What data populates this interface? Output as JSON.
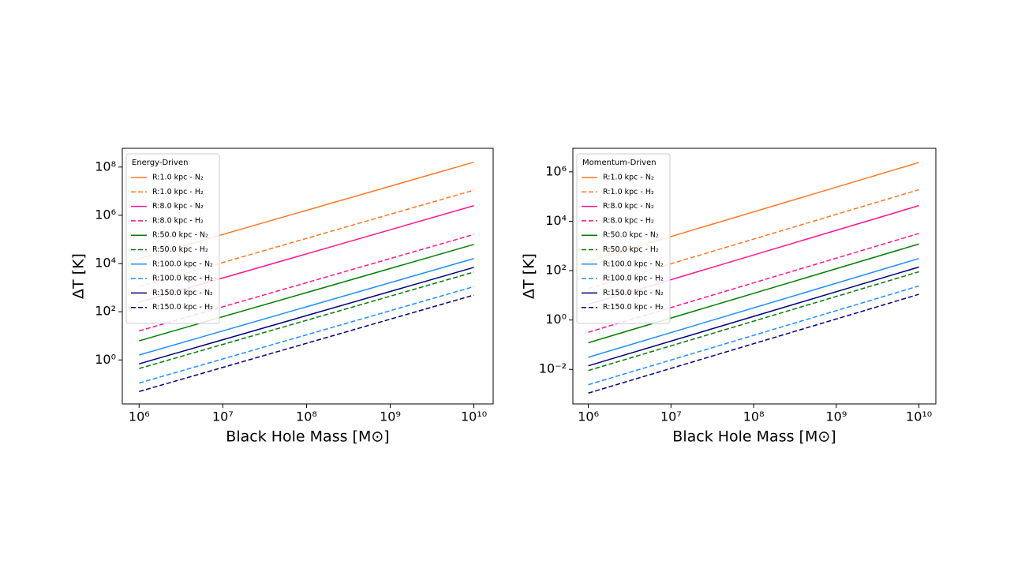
{
  "chart_data": [
    {
      "type": "line",
      "legend_title": "Energy-Driven",
      "xlabel": "Black Hole Mass [M⊙]",
      "ylabel": "ΔT [K]",
      "log_x": true,
      "log_y": true,
      "legend": "upper left",
      "x": [
        1000000,
        10000000000
      ],
      "xlim": [
        630000,
        17000000000
      ],
      "ylim": [
        0.015,
        600000000
      ],
      "xticks": [
        {
          "value": 1000000,
          "label": "10⁶"
        },
        {
          "value": 10000000,
          "label": "10⁷"
        },
        {
          "value": 100000000,
          "label": "10⁸"
        },
        {
          "value": 1000000000,
          "label": "10⁹"
        },
        {
          "value": 10000000000,
          "label": "10¹⁰"
        }
      ],
      "yticks": [
        {
          "value": 1,
          "label": "10⁰"
        },
        {
          "value": 100,
          "label": "10²"
        },
        {
          "value": 10000,
          "label": "10⁴"
        },
        {
          "value": 1000000,
          "label": "10⁶"
        },
        {
          "value": 100000000,
          "label": "10⁸"
        }
      ],
      "series": [
        {
          "name": "R:1.0 kpc - N₂",
          "color": "#ff7722",
          "linestyle": "solid",
          "values": [
            16000,
            160000000
          ]
        },
        {
          "name": "R:1.0 kpc - H₂",
          "color": "#ff7722",
          "linestyle": "dashed",
          "values": [
            1100,
            11000000
          ]
        },
        {
          "name": "R:8.0 kpc - N₂",
          "color": "#ff1493",
          "linestyle": "solid",
          "values": [
            250,
            2500000
          ]
        },
        {
          "name": "R:8.0 kpc - H₂",
          "color": "#ff1493",
          "linestyle": "dashed",
          "values": [
            16,
            160000
          ]
        },
        {
          "name": "R:50.0 kpc - N₂",
          "color": "#007f00",
          "linestyle": "solid",
          "values": [
            6.2,
            62000
          ]
        },
        {
          "name": "R:50.0 kpc - H₂",
          "color": "#007f00",
          "linestyle": "dashed",
          "values": [
            0.44,
            4400
          ]
        },
        {
          "name": "R:100.0 kpc - N₂",
          "color": "#1e8fff",
          "linestyle": "solid",
          "values": [
            1.6,
            16000
          ]
        },
        {
          "name": "R:100.0 kpc - H₂",
          "color": "#1e8fff",
          "linestyle": "dashed",
          "values": [
            0.11,
            1100
          ]
        },
        {
          "name": "R:150.0 kpc - N₂",
          "color": "#000080",
          "linestyle": "solid",
          "values": [
            0.69,
            6900
          ]
        },
        {
          "name": "R:150.0 kpc - H₂",
          "color": "#000080",
          "linestyle": "dashed",
          "values": [
            0.049,
            490
          ]
        }
      ]
    },
    {
      "type": "line",
      "legend_title": "Momentum-Driven",
      "xlabel": "Black Hole Mass [M⊙]",
      "ylabel": "ΔT [K]",
      "log_x": true,
      "log_y": true,
      "legend": "upper left",
      "x": [
        1000000,
        10000000000
      ],
      "xlim": [
        650000,
        16000000000
      ],
      "ylim": [
        0.0004,
        9000000
      ],
      "xticks": [
        {
          "value": 1000000,
          "label": "10⁶"
        },
        {
          "value": 10000000,
          "label": "10⁷"
        },
        {
          "value": 100000000,
          "label": "10⁸"
        },
        {
          "value": 1000000000,
          "label": "10⁹"
        },
        {
          "value": 10000000000,
          "label": "10¹⁰"
        }
      ],
      "yticks": [
        {
          "value": 0.01,
          "label": "10⁻²"
        },
        {
          "value": 1,
          "label": "10⁰"
        },
        {
          "value": 100,
          "label": "10²"
        },
        {
          "value": 10000,
          "label": "10⁴"
        },
        {
          "value": 1000000,
          "label": "10⁶"
        }
      ],
      "series": [
        {
          "name": "R:1.0 kpc - N₂",
          "color": "#ff7722",
          "linestyle": "solid",
          "values": [
            240,
            2400000
          ]
        },
        {
          "name": "R:1.0 kpc - H₂",
          "color": "#ff7722",
          "linestyle": "dashed",
          "values": [
            19,
            190000
          ]
        },
        {
          "name": "R:8.0 kpc - N₂",
          "color": "#ff1493",
          "linestyle": "solid",
          "values": [
            4.3,
            43000
          ]
        },
        {
          "name": "R:8.0 kpc - H₂",
          "color": "#ff1493",
          "linestyle": "dashed",
          "values": [
            0.32,
            3200
          ]
        },
        {
          "name": "R:50.0 kpc - N₂",
          "color": "#007f00",
          "linestyle": "solid",
          "values": [
            0.12,
            1200
          ]
        },
        {
          "name": "R:50.0 kpc - H₂",
          "color": "#007f00",
          "linestyle": "dashed",
          "values": [
            0.009,
            90
          ]
        },
        {
          "name": "R:100.0 kpc - N₂",
          "color": "#1e8fff",
          "linestyle": "solid",
          "values": [
            0.031,
            310
          ]
        },
        {
          "name": "R:100.0 kpc - H₂",
          "color": "#1e8fff",
          "linestyle": "dashed",
          "values": [
            0.0024,
            24
          ]
        },
        {
          "name": "R:150.0 kpc - N₂",
          "color": "#000080",
          "linestyle": "solid",
          "values": [
            0.014,
            140
          ]
        },
        {
          "name": "R:150.0 kpc - H₂",
          "color": "#000080",
          "linestyle": "dashed",
          "values": [
            0.0011,
            11
          ]
        }
      ]
    }
  ]
}
